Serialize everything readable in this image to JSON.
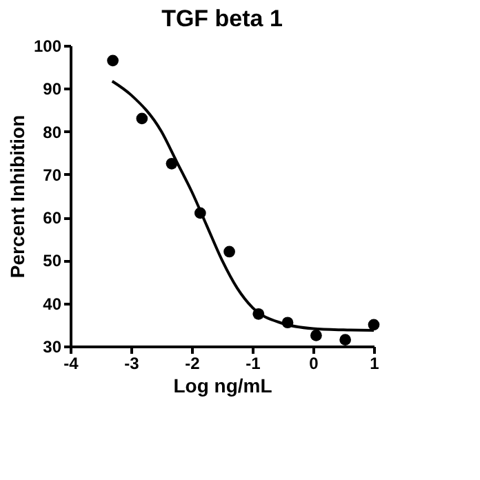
{
  "chart_data": {
    "type": "scatter",
    "title": "TGF beta 1",
    "xlabel": "Log ng/mL",
    "ylabel": "Percent Inhibition",
    "xlim": [
      -4,
      1
    ],
    "xticks": [
      -4,
      -3,
      -2,
      -1,
      0,
      1
    ],
    "ylim": [
      30,
      100
    ],
    "yticks": [
      30,
      40,
      50,
      60,
      70,
      80,
      90,
      100
    ],
    "grid": false,
    "legend": false,
    "series": [
      {
        "marker": "circle",
        "color": "#000000",
        "x": [
          -3.3,
          -2.82,
          -2.33,
          -1.86,
          -1.38,
          -0.9,
          -0.42,
          0.05,
          0.53,
          1.0
        ],
        "values": [
          96.5,
          83,
          72.5,
          61,
          52,
          37.5,
          35.5,
          32.5,
          31.5,
          35
        ]
      },
      {
        "type": "line",
        "line_style": "solid",
        "color": "#000000",
        "x": [
          -3.31,
          -3,
          -2.5,
          -2.25,
          -2,
          -1.75,
          -1.5,
          -1.25,
          -1,
          -0.5,
          0,
          0.5,
          1
        ],
        "values": [
          91.7,
          88.5,
          80,
          73,
          66,
          58,
          50,
          43.5,
          39,
          35.3,
          34.1,
          33.8,
          33.7
        ]
      }
    ]
  }
}
